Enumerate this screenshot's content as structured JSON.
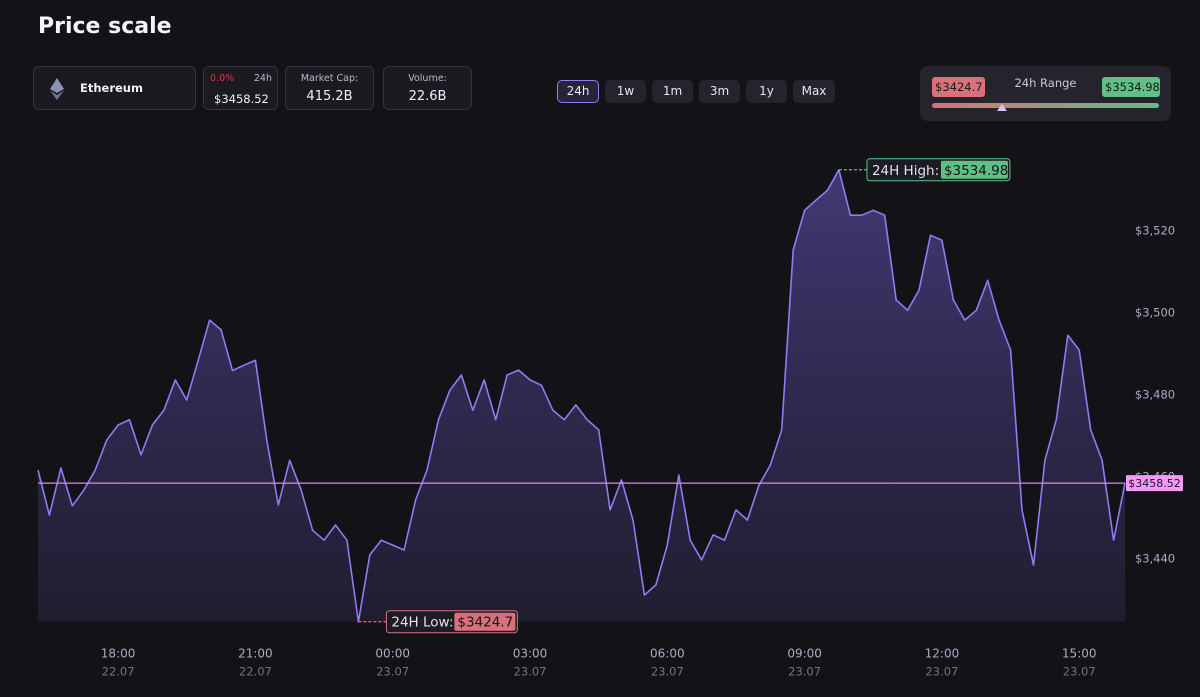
{
  "header": {
    "title": "Price scale",
    "coin": {
      "name": "Ethereum",
      "change": "0.0%",
      "period": "24h"
    },
    "market_cap": {
      "label": "Market Cap:",
      "value": "415.2B"
    },
    "volume": {
      "label": "Volume:",
      "value": "22.6B"
    },
    "ranges": [
      "24h",
      "1w",
      "1m",
      "3m",
      "1y",
      "Max"
    ],
    "active_range": 0,
    "range_panel": {
      "title": "24h Range"
    }
  },
  "chart_data": {
    "type": "area",
    "color": "#8b7df2",
    "x": [
      "22.07 16:15",
      "22.07 16:30",
      "22.07 16:45",
      "22.07 17:00",
      "22.07 17:15",
      "22.07 17:30",
      "22.07 17:45",
      "22.07 18:00",
      "22.07 18:15",
      "22.07 18:30",
      "22.07 18:45",
      "22.07 19:00",
      "22.07 19:15",
      "22.07 19:30",
      "22.07 19:45",
      "22.07 20:00",
      "22.07 20:15",
      "22.07 20:30",
      "22.07 20:45",
      "22.07 21:00",
      "22.07 21:15",
      "22.07 21:30",
      "22.07 21:45",
      "22.07 22:00",
      "22.07 22:15",
      "22.07 22:30",
      "22.07 22:45",
      "22.07 23:00",
      "22.07 23:15",
      "22.07 23:30",
      "22.07 23:45",
      "23.07 00:00",
      "23.07 00:15",
      "23.07 00:30",
      "23.07 00:45",
      "23.07 01:00",
      "23.07 01:15",
      "23.07 01:30",
      "23.07 01:45",
      "23.07 02:00",
      "23.07 02:15",
      "23.07 02:30",
      "23.07 02:45",
      "23.07 03:00",
      "23.07 03:15",
      "23.07 03:30",
      "23.07 03:45",
      "23.07 04:00",
      "23.07 04:15",
      "23.07 04:30",
      "23.07 04:45",
      "23.07 05:00",
      "23.07 05:15",
      "23.07 05:30",
      "23.07 05:45",
      "23.07 06:00",
      "23.07 06:15",
      "23.07 06:30",
      "23.07 06:45",
      "23.07 07:00",
      "23.07 07:15",
      "23.07 07:30",
      "23.07 07:45",
      "23.07 08:00",
      "23.07 08:15",
      "23.07 08:30",
      "23.07 08:45",
      "23.07 09:00",
      "23.07 09:15",
      "23.07 09:30",
      "23.07 09:45",
      "23.07 10:00",
      "23.07 10:15",
      "23.07 10:30",
      "23.07 10:45",
      "23.07 11:00",
      "23.07 11:15",
      "23.07 11:30",
      "23.07 11:45",
      "23.07 12:00",
      "23.07 12:15",
      "23.07 12:30",
      "23.07 12:45",
      "23.07 13:00",
      "23.07 13:15",
      "23.07 13:30",
      "23.07 13:45",
      "23.07 14:00",
      "23.07 14:15",
      "23.07 14:30",
      "23.07 14:45",
      "23.07 15:00",
      "23.07 15:15",
      "23.07 15:30",
      "23.07 15:45",
      "23.07 16:00"
    ],
    "values": [
      3461.7,
      3450.7,
      3462.2,
      3453,
      3456.8,
      3461.7,
      3469,
      3472.7,
      3474,
      3465.4,
      3472.7,
      3476.3,
      3483.7,
      3478.8,
      3488.5,
      3498.3,
      3495.9,
      3486,
      3487.3,
      3488.5,
      3469,
      3453.2,
      3464.1,
      3456.8,
      3447,
      3444.6,
      3448.3,
      3444.6,
      3424.7,
      3441,
      3444.6,
      3443.4,
      3442.2,
      3454.4,
      3461.7,
      3474,
      3481.2,
      3484.9,
      3476.3,
      3483.7,
      3474,
      3484.9,
      3486.1,
      3483.7,
      3482.4,
      3476.3,
      3474,
      3477.6,
      3474,
      3471.5,
      3452,
      3459.3,
      3449.5,
      3431.2,
      3433.7,
      3443.4,
      3460.5,
      3444.6,
      3439.8,
      3445.9,
      3444.6,
      3452,
      3449.5,
      3458,
      3462.9,
      3471.5,
      3515.4,
      3525.1,
      3527.6,
      3530,
      3534.98,
      3523.9,
      3523.9,
      3525.1,
      3523.9,
      3503.2,
      3500.7,
      3505.6,
      3519,
      3517.8,
      3503.2,
      3498.3,
      3500.7,
      3508,
      3498.3,
      3491,
      3452,
      3438.5,
      3464.1,
      3474,
      3494.6,
      3491,
      3471.5,
      3464.1,
      3444.6,
      3458.52
    ],
    "xlim": [
      "22.07 16:15",
      "23.07 16:00"
    ],
    "xticks": [
      {
        "value": "22.07 18:00",
        "label": "18:00",
        "date": "22.07"
      },
      {
        "value": "22.07 21:00",
        "label": "21:00",
        "date": "22.07"
      },
      {
        "value": "23.07 00:00",
        "label": "00:00",
        "date": "23.07"
      },
      {
        "value": "23.07 03:00",
        "label": "03:00",
        "date": "23.07"
      },
      {
        "value": "23.07 06:00",
        "label": "06:00",
        "date": "23.07"
      },
      {
        "value": "23.07 09:00",
        "label": "09:00",
        "date": "23.07"
      },
      {
        "value": "23.07 12:00",
        "label": "12:00",
        "date": "23.07"
      },
      {
        "value": "23.07 15:00",
        "label": "15:00",
        "date": "23.07"
      }
    ],
    "ylim": [
      3420,
      3542
    ],
    "yticks": [
      {
        "value": 3440,
        "label": "$3,440"
      },
      {
        "value": 3460,
        "label": "$3,460"
      },
      {
        "value": 3480,
        "label": "$3,480"
      },
      {
        "value": 3500,
        "label": "$3,500"
      },
      {
        "value": 3520,
        "label": "$3,520"
      }
    ],
    "price_line": {
      "value": 3458.52,
      "label": "$3458.52",
      "color": "#d889e6"
    },
    "high": {
      "label": "24H High:",
      "value": 3534.98,
      "value_label": "$3534.98",
      "x": "23.07 09:45",
      "color": "#5fbf85"
    },
    "low": {
      "label": "24H Low:",
      "value": 3424.7,
      "value_label": "$3424.7",
      "x": "22.07 23:15",
      "color": "#d9707a"
    }
  }
}
